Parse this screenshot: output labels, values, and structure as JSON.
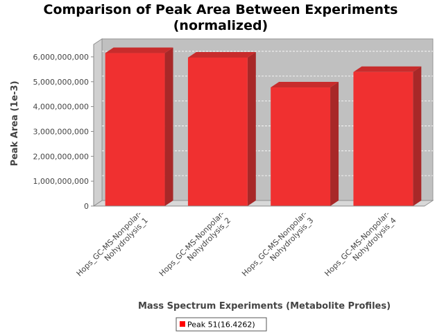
{
  "chart_data": {
    "type": "bar",
    "title_line1": "Comparison of Peak Area Between Experiments",
    "title_line2": "(normalized)",
    "xlabel": "Mass Spectrum Experiments (Metabolite Profiles)",
    "ylabel": "Peak Area (1e-3)",
    "ylim": [
      0,
      6500000000
    ],
    "yticks": [
      0,
      1000000000,
      2000000000,
      3000000000,
      4000000000,
      5000000000,
      6000000000
    ],
    "ytick_labels": [
      "0",
      "1,000,000,000",
      "2,000,000,000",
      "3,000,000,000",
      "4,000,000,000",
      "5,000,000,000",
      "6,000,000,000"
    ],
    "categories": [
      [
        "Hops_GC-MS-Nonpolar-",
        "Nohydrolysis_1"
      ],
      [
        "Hops_GC-MS-Nonpolar-",
        "Nohydrolysis_2"
      ],
      [
        "Hops_GC-MS-Nonpolar-",
        "Nohydrolysis_3"
      ],
      [
        "Hops_GC-MS-Nonpolar-",
        "Nohydrolysis_4"
      ]
    ],
    "series": [
      {
        "name": "Peak 51(16.4262)",
        "color": "#f03030",
        "values": [
          6150000000,
          5970000000,
          4770000000,
          5390000000
        ]
      }
    ],
    "grid": true,
    "legend_position": "bottom-center",
    "plot_background": "#c0c0c0"
  }
}
